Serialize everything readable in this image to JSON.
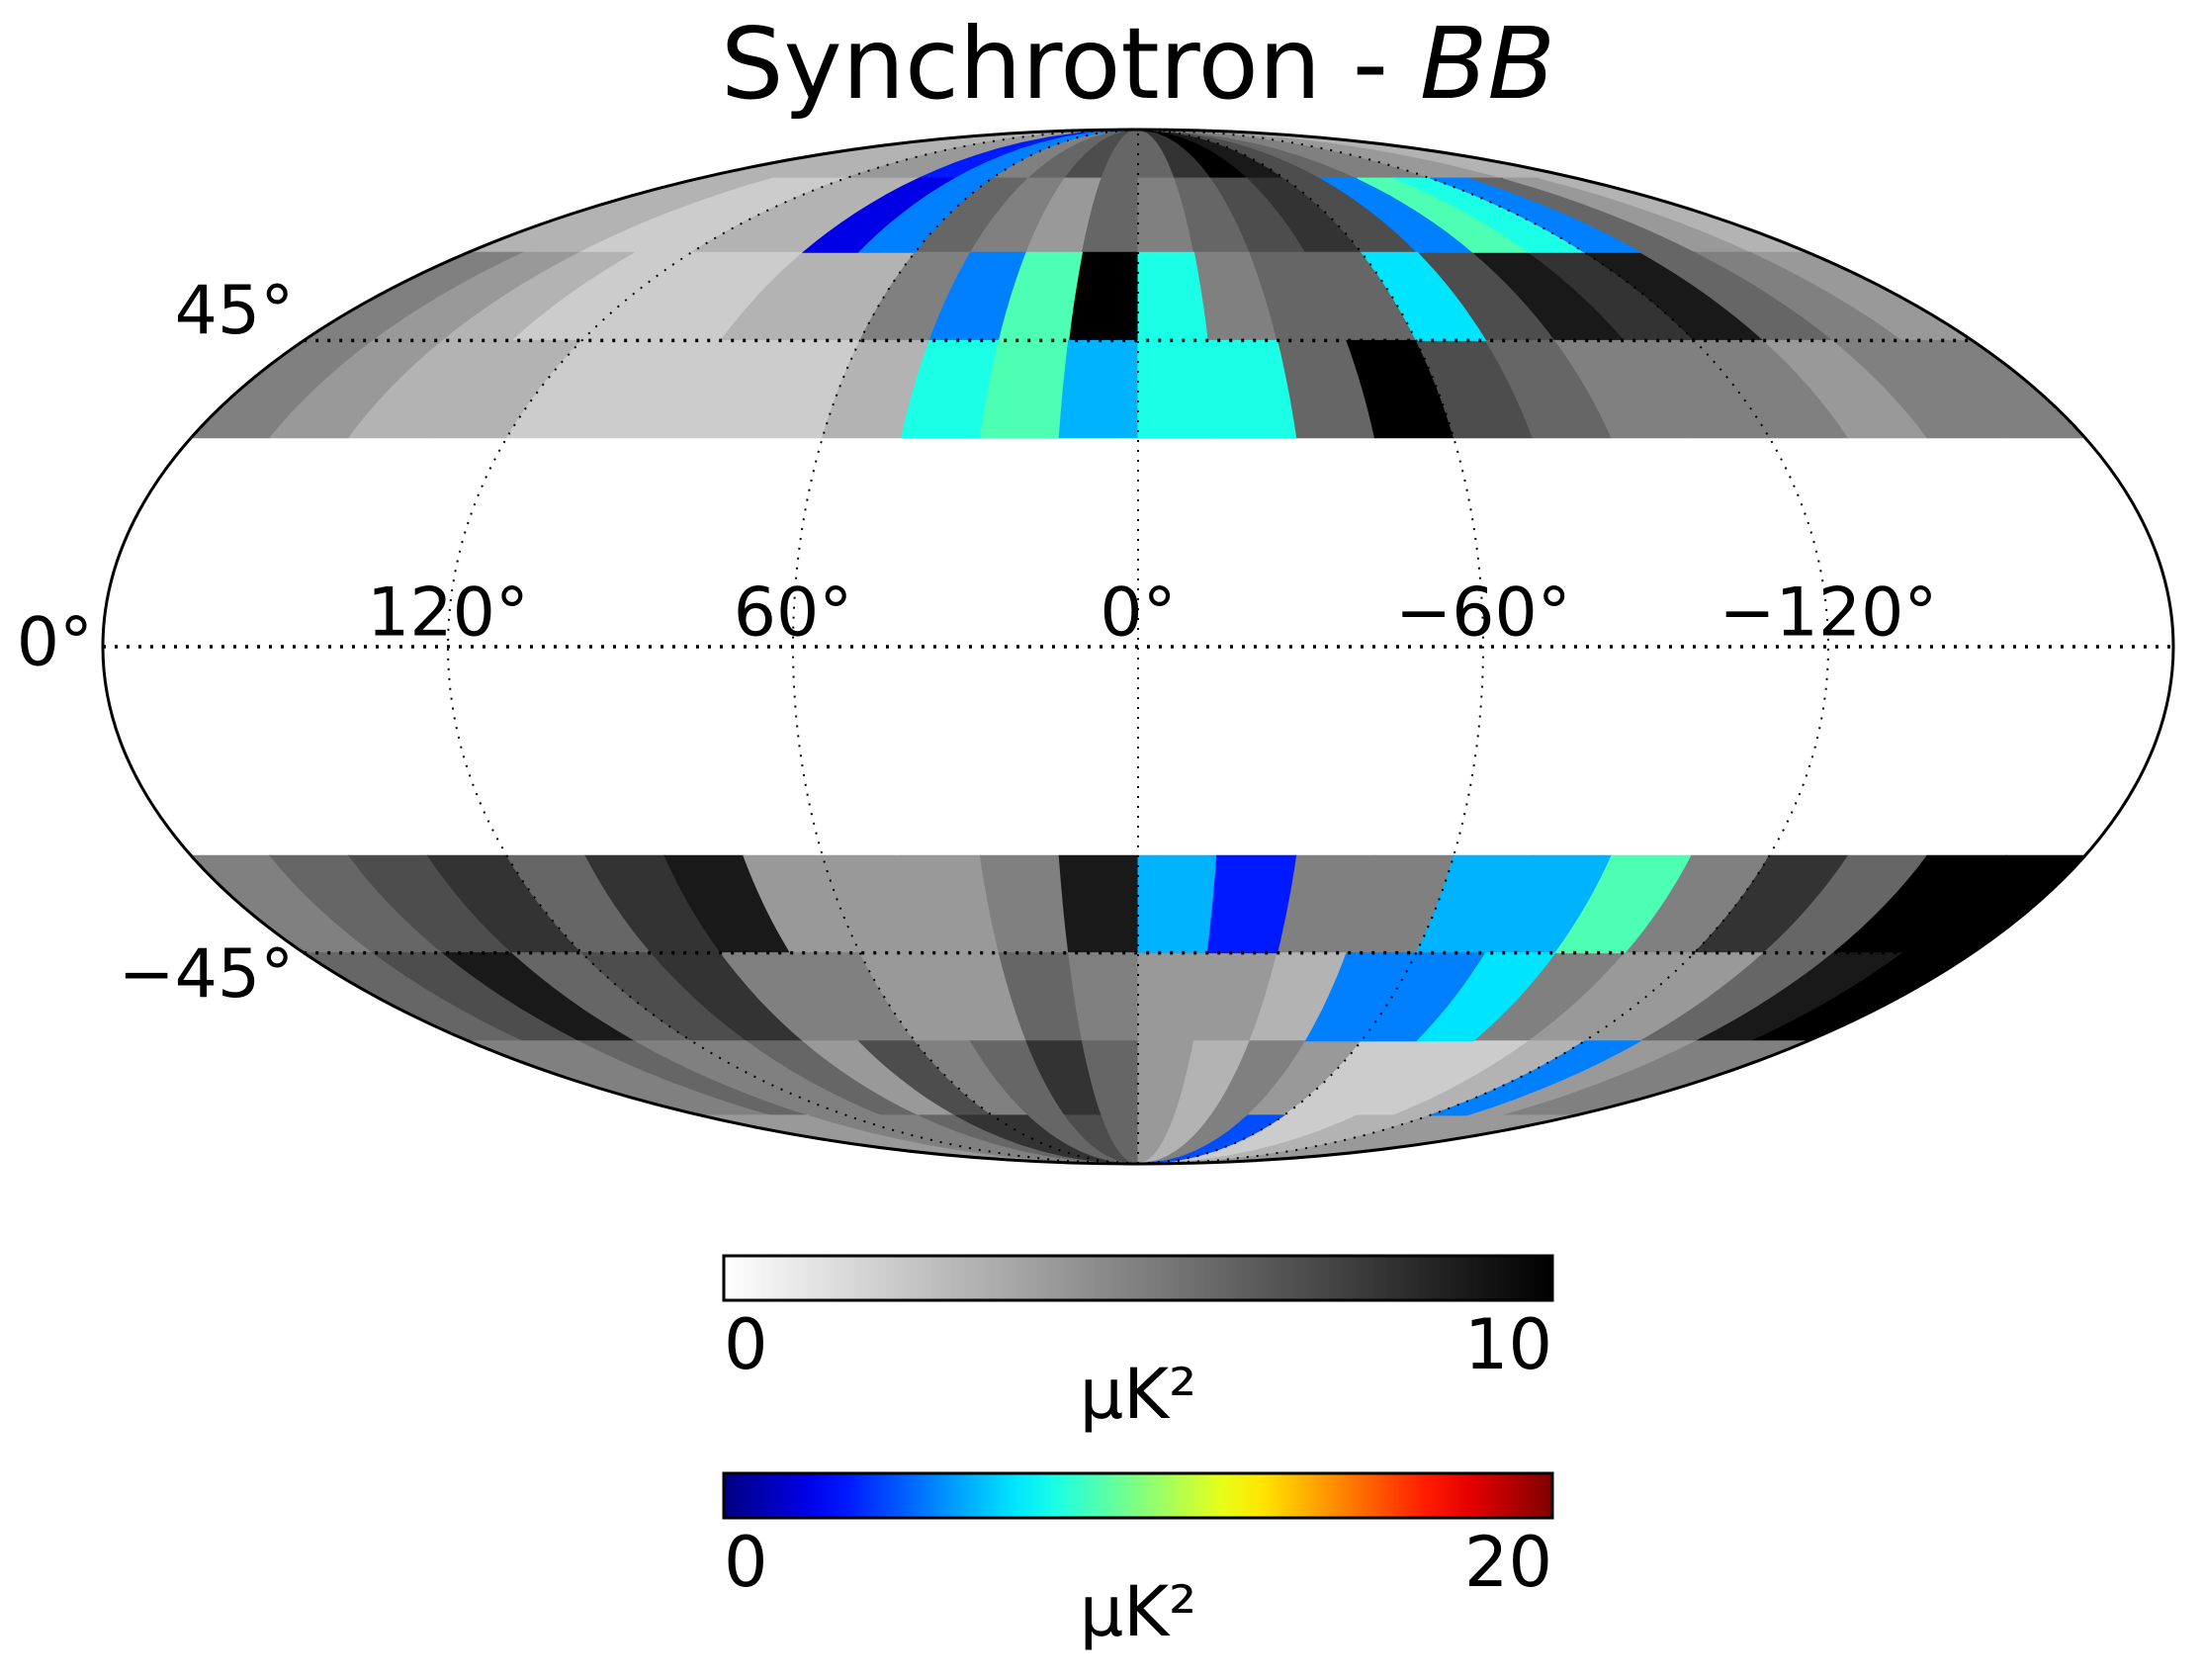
{
  "title": {
    "text": "Synchrotron - ",
    "emphasis": "BB"
  },
  "lon_labels": [
    {
      "value": 120,
      "label": "120°"
    },
    {
      "value": 60,
      "label": "60°"
    },
    {
      "value": 0,
      "label": "0°"
    },
    {
      "value": -60,
      "label": "−60°"
    },
    {
      "value": -120,
      "label": "−120°"
    }
  ],
  "lat_labels": [
    {
      "value": 45,
      "label": "45°"
    },
    {
      "value": 0,
      "label": "0°"
    },
    {
      "value": -45,
      "label": "−45°"
    }
  ],
  "colorbars": [
    {
      "colormap": "gray_r",
      "lim": [
        0,
        10
      ],
      "ticks": [
        0,
        10
      ],
      "label": "μK²"
    },
    {
      "colormap": "jet",
      "lim": [
        0,
        20
      ],
      "ticks": [
        0,
        20
      ],
      "label": "μK²"
    }
  ],
  "north": {
    "gray": [
      [
        3,
        3,
        3,
        3,
        4,
        4,
        null,
        null,
        5,
        6,
        7,
        6,
        6,
        8,
        10,
        9,
        7,
        6,
        5,
        5,
        4,
        4,
        3,
        3
      ],
      [
        3,
        3,
        2,
        2,
        3,
        3,
        null,
        null,
        6,
        5,
        4,
        6,
        5,
        6,
        7,
        8,
        7,
        null,
        null,
        null,
        null,
        6,
        4,
        3
      ],
      [
        5,
        4,
        3,
        2,
        2,
        2,
        3,
        3,
        5,
        null,
        null,
        10,
        null,
        5,
        6,
        6,
        null,
        7,
        9,
        8,
        9,
        6,
        5,
        4
      ],
      [
        5,
        4,
        3,
        3,
        2,
        2,
        2,
        2,
        3,
        null,
        null,
        null,
        null,
        null,
        6,
        10,
        7,
        6,
        5,
        5,
        5,
        4,
        5,
        5
      ]
    ],
    "jet": [
      [
        null,
        null,
        null,
        null,
        null,
        null,
        3,
        5,
        null,
        null,
        null,
        null,
        null,
        null,
        null,
        null,
        null,
        null,
        null,
        null,
        null,
        null,
        null,
        null
      ],
      [
        null,
        null,
        null,
        null,
        null,
        null,
        2,
        5,
        null,
        null,
        null,
        null,
        null,
        null,
        null,
        null,
        null,
        5,
        9,
        8,
        5,
        null,
        null,
        null
      ],
      [
        null,
        null,
        null,
        null,
        null,
        null,
        null,
        null,
        null,
        5,
        9,
        null,
        8,
        null,
        null,
        null,
        7,
        null,
        null,
        null,
        null,
        null,
        null,
        null
      ],
      [
        null,
        null,
        null,
        null,
        null,
        null,
        null,
        null,
        null,
        8,
        9,
        6,
        8,
        8,
        null,
        null,
        null,
        null,
        null,
        null,
        null,
        null,
        null,
        null
      ]
    ]
  },
  "south": {
    "gray": [
      [
        5,
        6,
        7,
        8,
        6,
        8,
        9,
        4,
        4,
        4,
        5,
        9,
        null,
        null,
        5,
        5,
        null,
        null,
        null,
        5,
        8,
        6,
        10,
        10
      ],
      [
        6,
        7,
        9,
        6,
        7,
        8,
        5,
        5,
        4,
        4,
        6,
        5,
        4,
        4,
        3,
        null,
        null,
        null,
        5,
        4,
        4,
        6,
        9,
        10
      ],
      [
        5,
        5,
        6,
        5,
        5,
        6,
        4,
        7,
        5,
        6,
        8,
        6,
        4,
        3,
        5,
        4,
        2,
        2,
        2,
        3,
        null,
        4,
        5,
        5
      ],
      [
        4,
        4,
        4,
        5,
        5,
        5,
        6,
        8,
        8,
        6,
        7,
        6,
        4,
        3,
        5,
        null,
        2,
        2,
        3,
        3,
        4,
        4,
        4,
        4
      ]
    ],
    "jet": [
      [
        null,
        null,
        null,
        null,
        null,
        null,
        null,
        null,
        null,
        null,
        null,
        null,
        6,
        3,
        null,
        null,
        6,
        6,
        9,
        null,
        null,
        null,
        null,
        null
      ],
      [
        null,
        null,
        null,
        null,
        null,
        null,
        null,
        null,
        null,
        null,
        null,
        null,
        null,
        null,
        null,
        5,
        5,
        7,
        null,
        null,
        null,
        null,
        null,
        null
      ],
      [
        null,
        null,
        null,
        null,
        null,
        null,
        null,
        null,
        null,
        null,
        null,
        null,
        null,
        null,
        null,
        null,
        null,
        null,
        null,
        null,
        5,
        null,
        null,
        null
      ],
      [
        null,
        null,
        null,
        null,
        null,
        null,
        null,
        null,
        null,
        null,
        null,
        null,
        null,
        null,
        null,
        4,
        null,
        null,
        null,
        null,
        null,
        null,
        null,
        null
      ]
    ]
  }
}
